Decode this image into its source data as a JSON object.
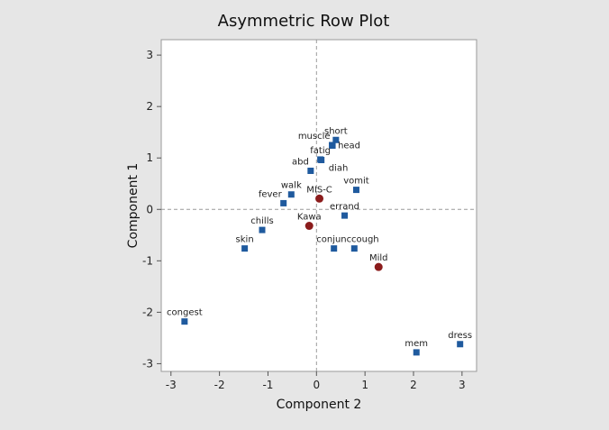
{
  "chart_data": {
    "type": "scatter",
    "title": "Asymmetric Row Plot",
    "xlabel": "Component 2",
    "ylabel": "Component 1",
    "xlim": [
      -3.2,
      3.3
    ],
    "ylim": [
      -3.15,
      3.3
    ],
    "x_ticks": [
      -3,
      -2,
      -1,
      0,
      1,
      2,
      3
    ],
    "y_ticks": [
      -3,
      -2,
      -1,
      0,
      1,
      2,
      3
    ],
    "reference_lines": {
      "x": 0,
      "y": 0,
      "style": "dashed"
    },
    "colors": {
      "rows": "#1f5a9e",
      "groups": "#8b1c1c"
    },
    "series": [
      {
        "marker": "square",
        "color": "#1f5a9e",
        "points": [
          {
            "label": "short",
            "x": 0.4,
            "y": 1.35
          },
          {
            "label": "muscle",
            "x": 0.32,
            "y": 1.25
          },
          {
            "label": "head",
            "x": 0.33,
            "y": 1.24
          },
          {
            "label": "fatig",
            "x": 0.08,
            "y": 0.97
          },
          {
            "label": "diah",
            "x": 0.1,
            "y": 0.96
          },
          {
            "label": "abd",
            "x": -0.12,
            "y": 0.75
          },
          {
            "label": "vomit",
            "x": 0.82,
            "y": 0.38
          },
          {
            "label": "walk",
            "x": -0.52,
            "y": 0.29
          },
          {
            "label": "fever",
            "x": -0.68,
            "y": 0.12
          },
          {
            "label": "errand",
            "x": 0.58,
            "y": -0.12
          },
          {
            "label": "chills",
            "x": -1.12,
            "y": -0.4
          },
          {
            "label": "skin",
            "x": -1.48,
            "y": -0.76
          },
          {
            "label": "conjunc",
            "x": 0.36,
            "y": -0.76
          },
          {
            "label": "cough",
            "x": 0.78,
            "y": -0.76
          },
          {
            "label": "congest",
            "x": -2.72,
            "y": -2.18
          },
          {
            "label": "mem",
            "x": 2.06,
            "y": -2.78
          },
          {
            "label": "dress",
            "x": 2.96,
            "y": -2.62
          }
        ]
      },
      {
        "marker": "circle",
        "color": "#8b1c1c",
        "points": [
          {
            "label": "MIS-C",
            "x": 0.06,
            "y": 0.21
          },
          {
            "label": "Kawa",
            "x": -0.15,
            "y": -0.32
          },
          {
            "label": "Mild",
            "x": 1.28,
            "y": -1.12
          }
        ]
      }
    ]
  }
}
